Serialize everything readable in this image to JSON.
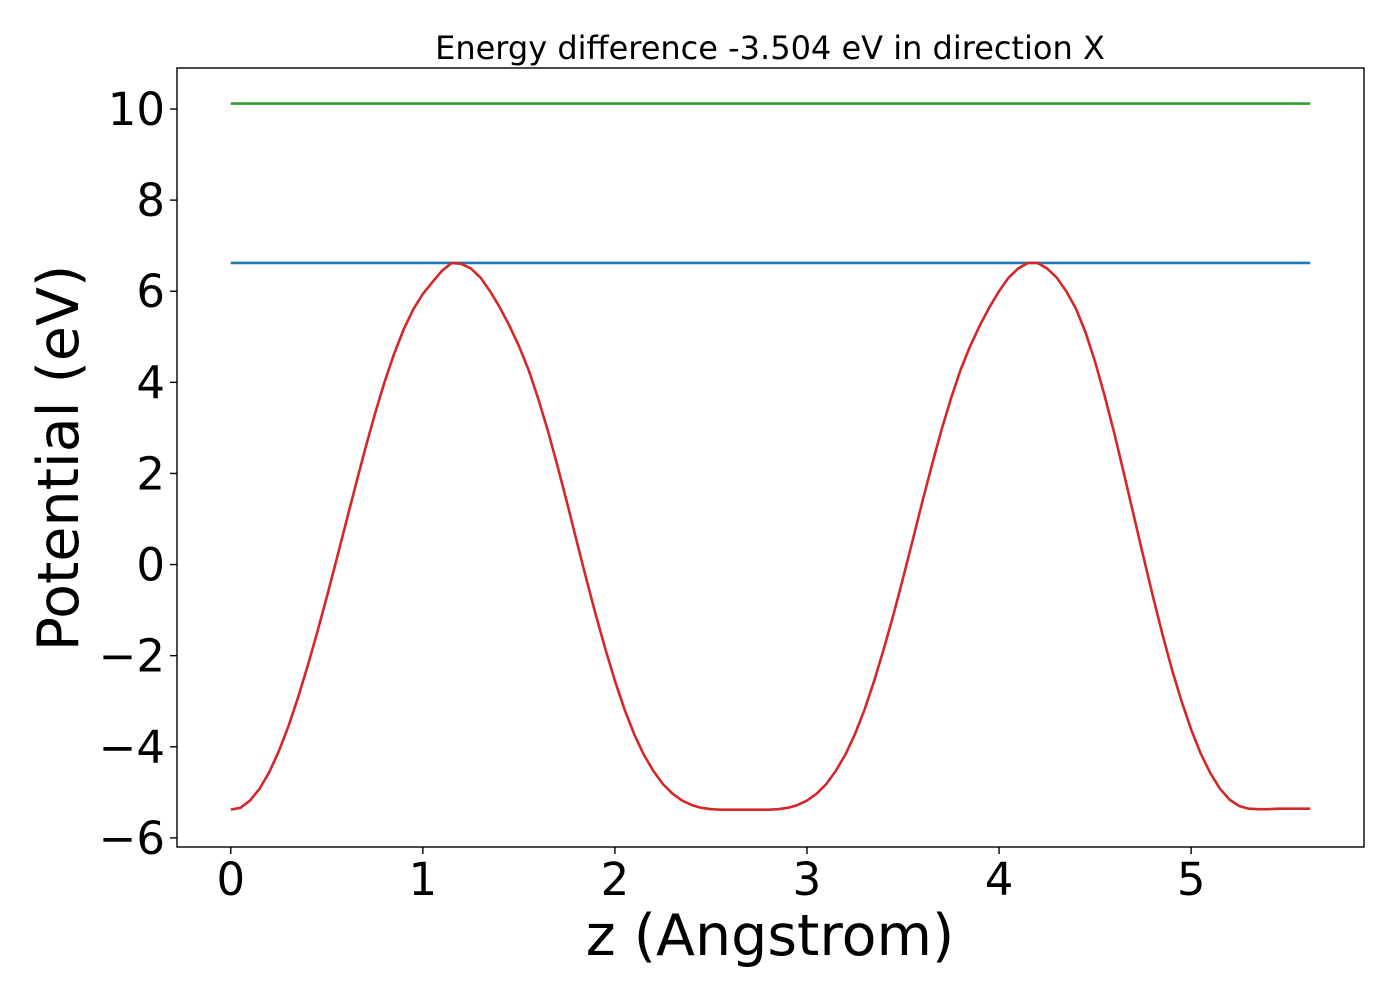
{
  "chart_data": {
    "type": "line",
    "title": "Energy difference -3.504 eV in direction X",
    "xlabel": "z (Angstrom)",
    "ylabel": "Potential (eV)",
    "xlim": [
      -0.28,
      5.9
    ],
    "ylim": [
      -6.2,
      10.9
    ],
    "xticks": [
      0,
      1,
      2,
      3,
      4,
      5
    ],
    "yticks": [
      -6,
      -4,
      -2,
      0,
      2,
      4,
      6,
      8,
      10
    ],
    "ytick_labels": [
      "−6",
      "−4",
      "−2",
      "0",
      "2",
      "4",
      "6",
      "8",
      "10"
    ],
    "xtick_labels": [
      "0",
      "1",
      "2",
      "3",
      "4",
      "5"
    ],
    "grid": false,
    "series": [
      {
        "color": "#2ca02c",
        "x": [
          0,
          5.62
        ],
        "y": [
          10.12,
          10.12
        ]
      },
      {
        "color": "#1f77b4",
        "x": [
          0,
          5.62
        ],
        "y": [
          6.62,
          6.62
        ]
      },
      {
        "color": "#d62728",
        "x": [
          0.0,
          0.05,
          0.1,
          0.15,
          0.2,
          0.25,
          0.3,
          0.35,
          0.4,
          0.45,
          0.5,
          0.55,
          0.6,
          0.65,
          0.7,
          0.75,
          0.8,
          0.85,
          0.9,
          0.95,
          1.0,
          1.05,
          1.1,
          1.15,
          1.2,
          1.25,
          1.3,
          1.35,
          1.4,
          1.45,
          1.5,
          1.55,
          1.6,
          1.65,
          1.7,
          1.75,
          1.8,
          1.85,
          1.9,
          1.95,
          2.0,
          2.05,
          2.1,
          2.15,
          2.2,
          2.25,
          2.3,
          2.35,
          2.4,
          2.45,
          2.5,
          2.55,
          2.6,
          2.65,
          2.7,
          2.75,
          2.8,
          2.85,
          2.9,
          2.95,
          3.0,
          3.05,
          3.1,
          3.15,
          3.2,
          3.25,
          3.3,
          3.35,
          3.4,
          3.45,
          3.5,
          3.55,
          3.6,
          3.65,
          3.7,
          3.75,
          3.8,
          3.85,
          3.9,
          3.95,
          4.0,
          4.05,
          4.1,
          4.15,
          4.2,
          4.25,
          4.3,
          4.35,
          4.4,
          4.45,
          4.5,
          4.55,
          4.6,
          4.65,
          4.7,
          4.75,
          4.8,
          4.85,
          4.9,
          4.95,
          5.0,
          5.05,
          5.1,
          5.15,
          5.2,
          5.25,
          5.3,
          5.35,
          5.4,
          5.45,
          5.5,
          5.55,
          5.6,
          5.62
        ],
        "y": [
          -5.38,
          -5.34,
          -5.18,
          -4.92,
          -4.56,
          -4.1,
          -3.55,
          -2.92,
          -2.23,
          -1.49,
          -0.71,
          0.1,
          0.92,
          1.74,
          2.54,
          3.3,
          4.0,
          4.62,
          5.16,
          5.6,
          5.94,
          6.2,
          6.45,
          6.62,
          6.6,
          6.5,
          6.3,
          6.0,
          5.65,
          5.25,
          4.8,
          4.28,
          3.65,
          2.95,
          2.18,
          1.37,
          0.53,
          -0.3,
          -1.1,
          -1.85,
          -2.55,
          -3.18,
          -3.72,
          -4.17,
          -4.53,
          -4.82,
          -5.03,
          -5.18,
          -5.28,
          -5.34,
          -5.37,
          -5.38,
          -5.38,
          -5.38,
          -5.38,
          -5.38,
          -5.38,
          -5.37,
          -5.34,
          -5.28,
          -5.18,
          -5.03,
          -4.82,
          -4.53,
          -4.17,
          -3.72,
          -3.18,
          -2.55,
          -1.85,
          -1.1,
          -0.3,
          0.53,
          1.37,
          2.18,
          2.95,
          3.65,
          4.28,
          4.8,
          5.25,
          5.65,
          6.0,
          6.3,
          6.5,
          6.62,
          6.62,
          6.5,
          6.3,
          6.0,
          5.62,
          5.1,
          4.45,
          3.7,
          2.88,
          2.0,
          1.1,
          0.2,
          -0.68,
          -1.52,
          -2.3,
          -3.0,
          -3.62,
          -4.15,
          -4.58,
          -4.92,
          -5.16,
          -5.3,
          -5.36,
          -5.37,
          -5.37,
          -5.36,
          -5.36,
          -5.36,
          -5.36,
          -5.36
        ],
        "note_removed": ""
      }
    ]
  }
}
